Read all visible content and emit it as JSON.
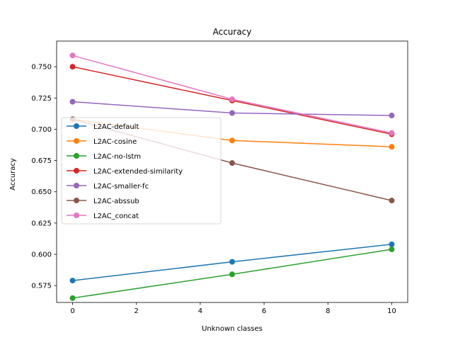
{
  "chart_data": {
    "type": "line",
    "title": "Accuracy",
    "xlabel": "Unknown classes",
    "ylabel": "Accuracy",
    "xlim": [
      -0.5,
      10.5
    ],
    "ylim": [
      0.5615,
      0.7705
    ],
    "xticks": [
      0,
      2,
      4,
      6,
      8,
      10
    ],
    "yticks": [
      0.575,
      0.6,
      0.625,
      0.65,
      0.675,
      0.7,
      0.725,
      0.75
    ],
    "ytick_labels": [
      "0.575",
      "0.600",
      "0.625",
      "0.650",
      "0.675",
      "0.700",
      "0.725",
      "0.750"
    ],
    "grid": false,
    "legend_position": "center-left",
    "x": [
      0,
      5,
      10
    ],
    "series": [
      {
        "name": "L2AC-default",
        "color": "#1f77b4",
        "values": [
          0.579,
          0.594,
          0.608
        ]
      },
      {
        "name": "L2AC-cosine",
        "color": "#ff7f0e",
        "values": [
          0.708,
          0.691,
          0.686
        ]
      },
      {
        "name": "L2AC-no-lstm",
        "color": "#2ca02c",
        "values": [
          0.565,
          0.584,
          0.604
        ]
      },
      {
        "name": "L2AC-extended-similarity",
        "color": "#d62728",
        "values": [
          0.75,
          0.723,
          0.696
        ]
      },
      {
        "name": "L2AC-smaller-fc",
        "color": "#9467bd",
        "values": [
          0.722,
          0.713,
          0.711
        ]
      },
      {
        "name": "L2AC-abssub",
        "color": "#8c564b",
        "values": [
          0.708,
          0.673,
          0.643
        ]
      },
      {
        "name": "L2AC_concat",
        "color": "#e377c2",
        "values": [
          0.759,
          0.724,
          0.697
        ]
      }
    ]
  }
}
